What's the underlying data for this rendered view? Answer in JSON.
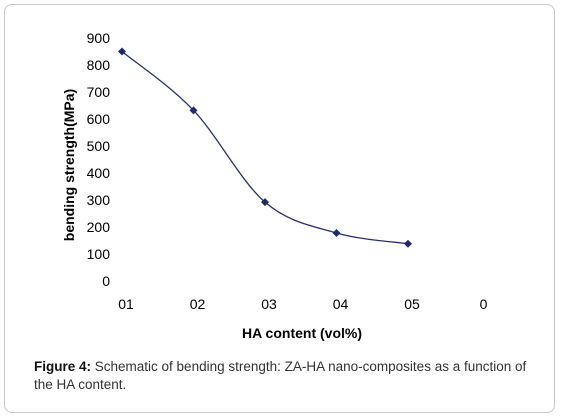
{
  "chart_data": {
    "type": "line",
    "title": "",
    "xlabel": "HA content (vol%)",
    "ylabel": "bending strength(MPa)",
    "x_tick_labels": [
      "01",
      "02",
      "03",
      "04",
      "05",
      "0"
    ],
    "y_ticks": [
      0,
      100,
      200,
      300,
      400,
      500,
      600,
      700,
      800,
      900
    ],
    "ylim": [
      0,
      900
    ],
    "grid": false,
    "legend": "none",
    "series": [
      {
        "x_index": [
          0,
          1,
          2,
          3,
          4
        ],
        "values": [
          850,
          632,
          292,
          178,
          138
        ]
      }
    ],
    "marker": "diamond",
    "line_color": "#2b2f6e",
    "marker_color": "#1f2a6b"
  },
  "caption": {
    "label": "Figure 4:",
    "text": " Schematic of bending strength: ZA-HA nano-composites as a function of the HA content."
  }
}
